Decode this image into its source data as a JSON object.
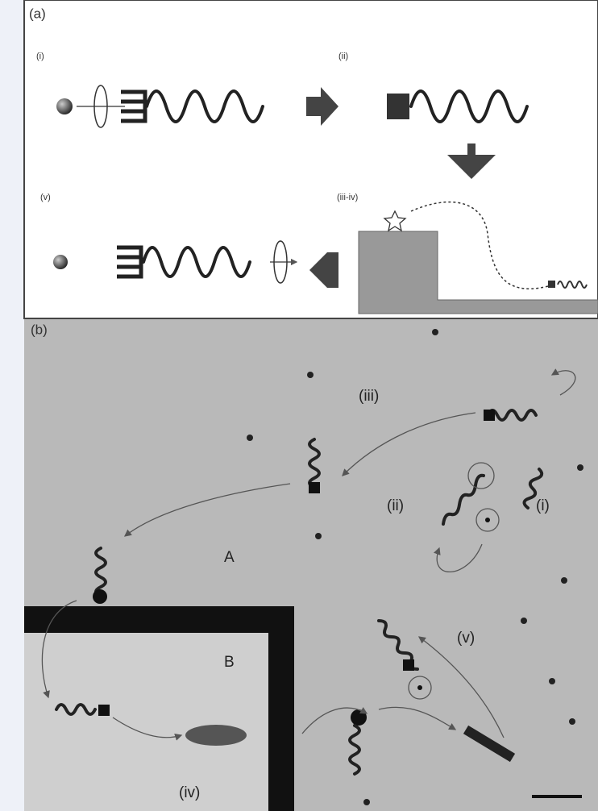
{
  "panel_a": {
    "label": "(a)",
    "steps": [
      "(i)",
      "(ii)",
      "(v)",
      "(iii-iv)"
    ]
  },
  "panel_b": {
    "label": "(b)",
    "annotations": [
      "(iii)",
      "(ii)",
      "(i)",
      "A",
      "(v)",
      "B",
      "(iv)"
    ]
  }
}
